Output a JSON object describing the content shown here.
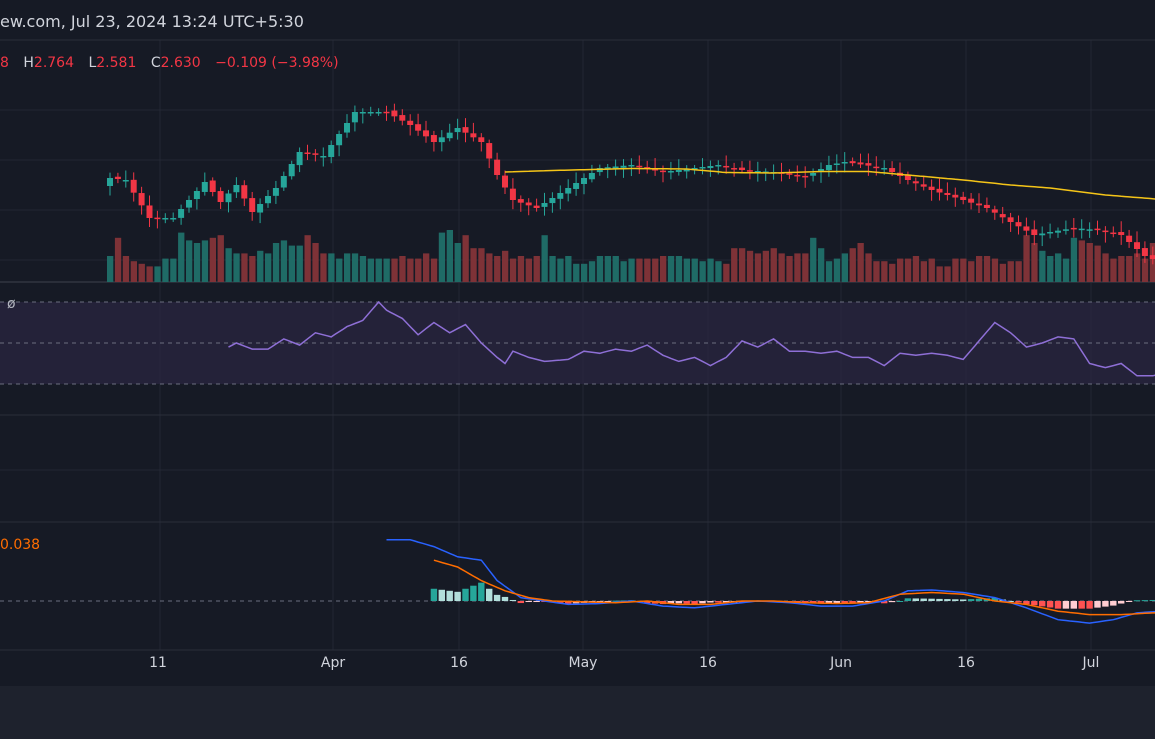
{
  "header": {
    "text": "ew.com, Jul 23, 2024 13:24 UTC+5:30"
  },
  "ohlc": {
    "open_tail": "8",
    "h_label": "H",
    "h": "2.764",
    "l_label": "L",
    "l": "2.581",
    "c_label": "C",
    "c": "2.630",
    "change": "−0.109 (−3.98%)"
  },
  "rsi_icon": "ø",
  "macd_value": "0.038",
  "colors": {
    "bg": "#161a25",
    "grid": "#232734",
    "up": "#26a69a",
    "down": "#f23645",
    "vol_up": "#1f6b66",
    "vol_down": "#7e3237",
    "ma": "#f5c518",
    "rsi": "#8e6fd6",
    "rsi_band": "#2a2540",
    "macd": "#2962ff",
    "signal": "#ff6d00",
    "hist_up_strong": "#26a69a",
    "hist_up_weak": "#b2dfdb",
    "hist_down_strong": "#ff5252",
    "hist_down_weak": "#ffcdd2"
  },
  "xaxis": {
    "ticks": [
      "11",
      "Apr",
      "16",
      "May",
      "16",
      "Jun",
      "16",
      "Jul"
    ]
  },
  "chart_data": {
    "type": "candlestick",
    "panels": [
      "price",
      "rsi",
      "macd"
    ],
    "price": {
      "c_seg": [
        [
          0,
          3.52
        ],
        [
          2,
          3.5
        ],
        [
          5,
          3.12
        ],
        [
          8,
          3.12
        ],
        [
          12,
          3.48
        ],
        [
          14,
          3.28
        ],
        [
          16,
          3.45
        ],
        [
          18,
          3.18
        ],
        [
          21,
          3.42
        ],
        [
          24,
          3.78
        ],
        [
          27,
          3.74
        ],
        [
          31,
          4.18
        ],
        [
          35,
          4.18
        ],
        [
          38,
          4.05
        ],
        [
          41,
          3.88
        ],
        [
          44,
          4.02
        ],
        [
          47,
          3.88
        ],
        [
          49,
          3.55
        ],
        [
          51,
          3.3
        ],
        [
          54,
          3.22
        ],
        [
          58,
          3.42
        ],
        [
          62,
          3.62
        ],
        [
          66,
          3.65
        ],
        [
          70,
          3.58
        ],
        [
          74,
          3.62
        ],
        [
          77,
          3.65
        ],
        [
          80,
          3.6
        ],
        [
          84,
          3.58
        ],
        [
          88,
          3.53
        ],
        [
          91,
          3.65
        ],
        [
          93,
          3.68
        ],
        [
          98,
          3.62
        ],
        [
          101,
          3.5
        ],
        [
          104,
          3.4
        ],
        [
          108,
          3.3
        ],
        [
          111,
          3.22
        ],
        [
          114,
          3.08
        ],
        [
          117,
          2.95
        ],
        [
          119,
          2.98
        ],
        [
          122,
          3.02
        ],
        [
          125,
          3.0
        ],
        [
          128,
          2.95
        ],
        [
          131,
          2.74
        ],
        [
          134,
          2.65
        ]
      ],
      "ma_seg": [
        [
          50,
          3.58
        ],
        [
          56,
          3.595
        ],
        [
          66,
          3.615
        ],
        [
          73,
          3.61
        ],
        [
          78,
          3.575
        ],
        [
          84,
          3.57
        ],
        [
          90,
          3.585
        ],
        [
          96,
          3.585
        ],
        [
          101,
          3.55
        ],
        [
          108,
          3.5
        ],
        [
          114,
          3.45
        ],
        [
          119,
          3.42
        ],
        [
          126,
          3.35
        ],
        [
          134,
          3.3
        ]
      ],
      "volume": [
        0.5,
        0.85,
        0.5,
        0.4,
        0.35,
        0.3,
        0.3,
        0.45,
        0.45,
        0.95,
        0.8,
        0.75,
        0.8,
        0.85,
        0.9,
        0.65,
        0.55,
        0.55,
        0.5,
        0.6,
        0.55,
        0.75,
        0.8,
        0.7,
        0.7,
        0.9,
        0.75,
        0.55,
        0.55,
        0.45,
        0.55,
        0.55,
        0.5,
        0.45,
        0.45,
        0.45,
        0.45,
        0.5,
        0.45,
        0.45,
        0.55,
        0.45,
        0.95,
        1.0,
        0.75,
        0.9,
        0.65,
        0.65,
        0.55,
        0.5,
        0.6,
        0.45,
        0.5,
        0.45,
        0.5,
        0.9,
        0.5,
        0.45,
        0.5,
        0.35,
        0.35,
        0.4,
        0.5,
        0.5,
        0.5,
        0.4,
        0.45,
        0.45,
        0.45,
        0.45,
        0.5,
        0.5,
        0.5,
        0.45,
        0.45,
        0.4,
        0.45,
        0.4,
        0.35,
        0.65,
        0.65,
        0.6,
        0.55,
        0.6,
        0.65,
        0.55,
        0.5,
        0.55,
        0.55,
        0.85,
        0.65,
        0.4,
        0.45,
        0.55,
        0.65,
        0.75,
        0.55,
        0.4,
        0.4,
        0.35,
        0.45,
        0.45,
        0.5,
        0.4,
        0.45,
        0.3,
        0.3,
        0.45,
        0.45,
        0.4,
        0.5,
        0.5,
        0.45,
        0.35,
        0.4,
        0.4,
        0.9,
        0.75,
        0.6,
        0.5,
        0.55,
        0.45,
        0.85,
        0.8,
        0.75,
        0.7,
        0.55,
        0.45,
        0.5,
        0.5,
        0.55,
        0.45,
        0.75,
        1.0,
        0.6,
        0.85
      ]
    },
    "rsi": {
      "levels": [
        70,
        50,
        30
      ],
      "seg": [
        [
          15,
          48
        ],
        [
          16,
          50
        ],
        [
          18,
          47
        ],
        [
          20,
          47
        ],
        [
          22,
          52
        ],
        [
          24,
          49
        ],
        [
          26,
          55
        ],
        [
          28,
          53
        ],
        [
          30,
          58
        ],
        [
          32,
          61
        ],
        [
          34,
          70
        ],
        [
          35,
          66
        ],
        [
          37,
          62
        ],
        [
          39,
          54
        ],
        [
          41,
          60
        ],
        [
          43,
          55
        ],
        [
          45,
          59
        ],
        [
          47,
          50
        ],
        [
          49,
          43
        ],
        [
          50,
          40
        ],
        [
          51,
          46
        ],
        [
          53,
          43
        ],
        [
          55,
          41
        ],
        [
          58,
          42
        ],
        [
          60,
          46
        ],
        [
          62,
          45
        ],
        [
          64,
          47
        ],
        [
          66,
          46
        ],
        [
          68,
          49
        ],
        [
          70,
          44
        ],
        [
          72,
          41
        ],
        [
          74,
          43
        ],
        [
          76,
          39
        ],
        [
          78,
          43
        ],
        [
          80,
          51
        ],
        [
          82,
          48
        ],
        [
          84,
          52
        ],
        [
          86,
          46
        ],
        [
          88,
          46
        ],
        [
          90,
          45
        ],
        [
          92,
          46
        ],
        [
          94,
          43
        ],
        [
          96,
          43
        ],
        [
          98,
          39
        ],
        [
          100,
          45
        ],
        [
          102,
          44
        ],
        [
          104,
          45
        ],
        [
          106,
          44
        ],
        [
          108,
          42
        ],
        [
          110,
          51
        ],
        [
          112,
          60
        ],
        [
          114,
          55
        ],
        [
          116,
          48
        ],
        [
          118,
          50
        ],
        [
          120,
          53
        ],
        [
          122,
          52
        ],
        [
          124,
          40
        ],
        [
          126,
          38
        ],
        [
          128,
          40
        ],
        [
          130,
          34
        ],
        [
          132,
          34
        ],
        [
          134,
          36
        ],
        [
          136,
          35
        ]
      ]
    },
    "macd": {
      "zero": 0,
      "macd_seg": [
        [
          35,
          0.36
        ],
        [
          38,
          0.36
        ],
        [
          41,
          0.32
        ],
        [
          44,
          0.26
        ],
        [
          47,
          0.24
        ],
        [
          49,
          0.12
        ],
        [
          52,
          0.02
        ],
        [
          55,
          0.0
        ],
        [
          58,
          -0.02
        ],
        [
          62,
          -0.015
        ],
        [
          66,
          0.0
        ],
        [
          70,
          -0.03
        ],
        [
          74,
          -0.04
        ],
        [
          78,
          -0.02
        ],
        [
          82,
          0.0
        ],
        [
          86,
          -0.01
        ],
        [
          88,
          -0.02
        ],
        [
          90,
          -0.03
        ],
        [
          94,
          -0.03
        ],
        [
          98,
          0.0
        ],
        [
          101,
          0.06
        ],
        [
          104,
          0.065
        ],
        [
          108,
          0.05
        ],
        [
          112,
          0.02
        ],
        [
          116,
          -0.04
        ],
        [
          120,
          -0.11
        ],
        [
          124,
          -0.13
        ],
        [
          127,
          -0.11
        ],
        [
          130,
          -0.07
        ],
        [
          133,
          -0.06
        ],
        [
          136,
          -0.07
        ]
      ],
      "signal_seg": [
        [
          41,
          0.24
        ],
        [
          44,
          0.2
        ],
        [
          47,
          0.12
        ],
        [
          50,
          0.06
        ],
        [
          53,
          0.02
        ],
        [
          56,
          0.0
        ],
        [
          60,
          -0.005
        ],
        [
          64,
          -0.01
        ],
        [
          68,
          0.0
        ],
        [
          72,
          -0.02
        ],
        [
          76,
          -0.02
        ],
        [
          80,
          0.0
        ],
        [
          84,
          0.0
        ],
        [
          88,
          -0.01
        ],
        [
          92,
          -0.015
        ],
        [
          96,
          -0.01
        ],
        [
          100,
          0.04
        ],
        [
          104,
          0.05
        ],
        [
          108,
          0.04
        ],
        [
          112,
          0.0
        ],
        [
          116,
          -0.02
        ],
        [
          120,
          -0.06
        ],
        [
          124,
          -0.08
        ],
        [
          128,
          -0.08
        ],
        [
          132,
          -0.07
        ],
        [
          136,
          -0.07
        ]
      ]
    }
  }
}
